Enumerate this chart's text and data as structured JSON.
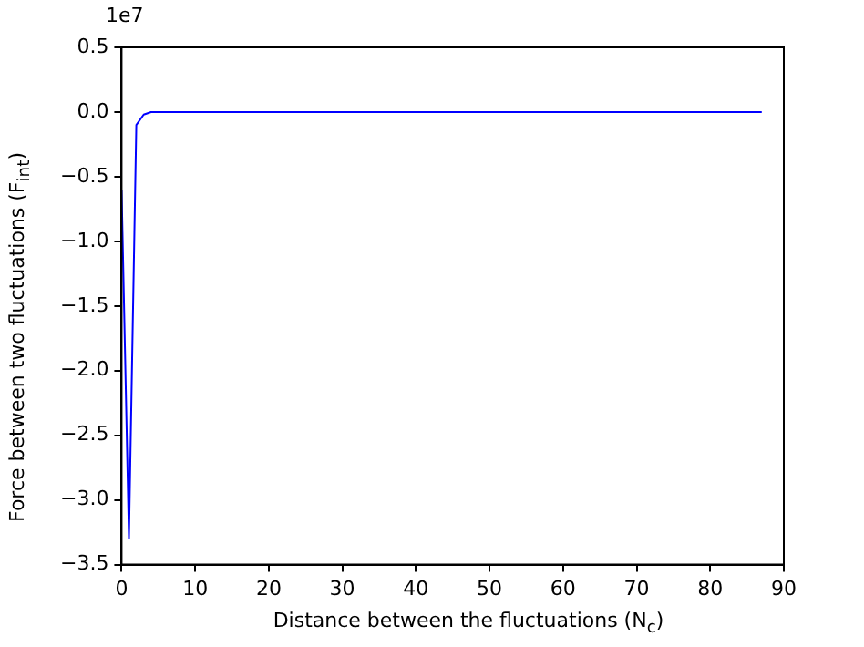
{
  "chart_data": {
    "type": "line",
    "xlabel": "Distance between the fluctuations (N$_{c}$)",
    "ylabel": "Force between two fluctuations (F$_{int}$)",
    "annotations": [
      "1e7"
    ],
    "series": [
      {
        "color": "#0000ff",
        "x": [
          0,
          1,
          2,
          3,
          4,
          87
        ],
        "values": [
          -0.6,
          -3.3,
          -0.1,
          -0.02,
          0,
          0
        ]
      }
    ],
    "xlim": [
      0,
      90
    ],
    "xticks": [
      0,
      10,
      20,
      30,
      40,
      50,
      60,
      70,
      80,
      90
    ],
    "ylim": [
      -3.5,
      0.5
    ],
    "yticks": [
      {
        "value": -3.5,
        "label": "−3.5"
      },
      {
        "value": -3.0,
        "label": "−3.0"
      },
      {
        "value": -2.5,
        "label": "−2.5"
      },
      {
        "value": -2.0,
        "label": "−2.0"
      },
      {
        "value": -1.5,
        "label": "−1.5"
      },
      {
        "value": -1.0,
        "label": "−1.0"
      },
      {
        "value": -0.5,
        "label": "−0.5"
      },
      {
        "value": 0.0,
        "label": "0.0"
      },
      {
        "value": 0.5,
        "label": "0.5"
      }
    ],
    "grid": false,
    "legend": false,
    "marker": "none",
    "line_style": "solid"
  }
}
